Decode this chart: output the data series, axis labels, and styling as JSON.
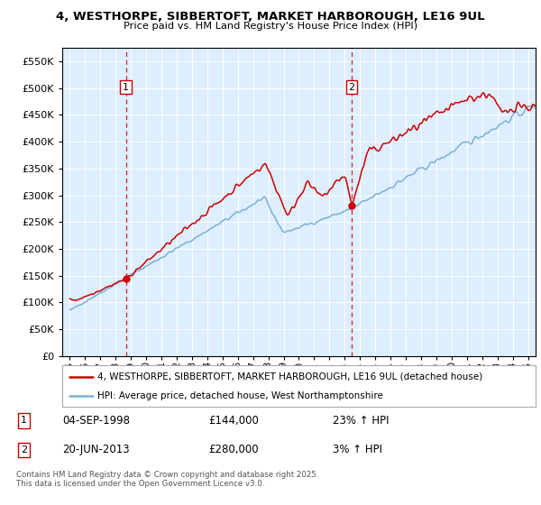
{
  "title": "4, WESTHORPE, SIBBERTOFT, MARKET HARBOROUGH, LE16 9UL",
  "subtitle": "Price paid vs. HM Land Registry's House Price Index (HPI)",
  "legend_line1": "4, WESTHORPE, SIBBERTOFT, MARKET HARBOROUGH, LE16 9UL (detached house)",
  "legend_line2": "HPI: Average price, detached house, West Northamptonshire",
  "footnote": "Contains HM Land Registry data © Crown copyright and database right 2025.\nThis data is licensed under the Open Government Licence v3.0.",
  "sale1_label": "1",
  "sale1_date": "04-SEP-1998",
  "sale1_price": "£144,000",
  "sale1_hpi": "23% ↑ HPI",
  "sale2_label": "2",
  "sale2_date": "20-JUN-2013",
  "sale2_price": "£280,000",
  "sale2_hpi": "3% ↑ HPI",
  "sale1_year": 1998.67,
  "sale2_year": 2013.46,
  "sale1_price_val": 144000,
  "sale2_price_val": 280000,
  "red_color": "#cc0000",
  "blue_color": "#7ab0d4",
  "dashed_color": "#cc0000",
  "plot_bg": "#ddeeff",
  "ylim": [
    0,
    575000
  ],
  "xlim_start": 1994.5,
  "xlim_end": 2025.5
}
